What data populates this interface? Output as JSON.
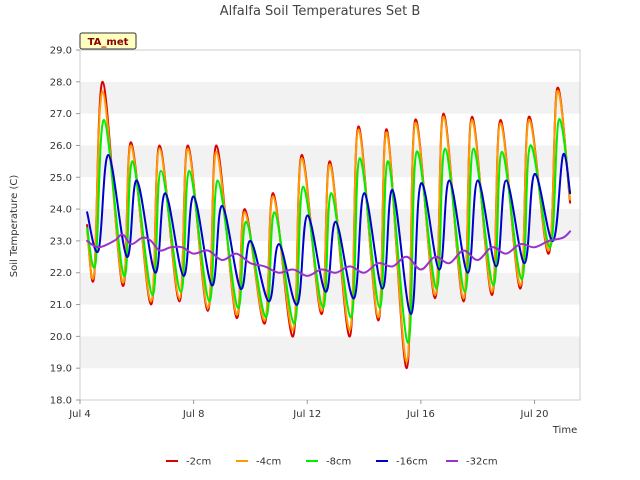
{
  "chart_data": {
    "type": "line",
    "title": "Alfalfa Soil Temperatures Set B",
    "xlabel": "Time",
    "ylabel": "Soil Temperature (C)",
    "badge": "TA_met",
    "x_unit": "days since Jul 4 00:00",
    "xlim": [
      4.0,
      21.6
    ],
    "ylim": [
      18.0,
      29.0
    ],
    "y_ticks": [
      18.0,
      19.0,
      20.0,
      21.0,
      22.0,
      23.0,
      24.0,
      25.0,
      26.0,
      27.0,
      28.0,
      29.0
    ],
    "x_ticks": [
      {
        "value": 4,
        "label": "Jul 4"
      },
      {
        "value": 8,
        "label": "Jul 8"
      },
      {
        "value": 12,
        "label": "Jul 12"
      },
      {
        "value": 16,
        "label": "Jul 16"
      },
      {
        "value": 20,
        "label": "Jul 20"
      }
    ],
    "grid": "horizontal bands",
    "legend_position": "bottom",
    "series": [
      {
        "name": "-2cm",
        "color": "#dd0000",
        "points": [
          [
            4.25,
            23.5
          ],
          [
            4.5,
            21.9
          ],
          [
            4.8,
            28.0
          ],
          [
            5.5,
            21.6
          ],
          [
            5.8,
            26.1
          ],
          [
            6.5,
            21.0
          ],
          [
            6.8,
            26.0
          ],
          [
            7.5,
            21.1
          ],
          [
            7.8,
            26.0
          ],
          [
            8.5,
            20.8
          ],
          [
            8.8,
            26.0
          ],
          [
            9.5,
            20.6
          ],
          [
            9.8,
            24.0
          ],
          [
            10.5,
            20.4
          ],
          [
            10.8,
            24.5
          ],
          [
            11.5,
            20.0
          ],
          [
            11.8,
            25.7
          ],
          [
            12.5,
            20.7
          ],
          [
            12.8,
            25.5
          ],
          [
            13.5,
            20.0
          ],
          [
            13.8,
            26.6
          ],
          [
            14.5,
            20.5
          ],
          [
            14.8,
            26.5
          ],
          [
            15.5,
            19.0
          ],
          [
            15.8,
            26.8
          ],
          [
            16.5,
            21.2
          ],
          [
            16.8,
            27.0
          ],
          [
            17.5,
            21.1
          ],
          [
            17.8,
            26.9
          ],
          [
            18.5,
            21.3
          ],
          [
            18.8,
            26.8
          ],
          [
            19.5,
            21.5
          ],
          [
            19.8,
            26.9
          ],
          [
            20.5,
            22.6
          ],
          [
            20.8,
            27.8
          ],
          [
            21.25,
            24.2
          ]
        ]
      },
      {
        "name": "-4cm",
        "color": "#ff9900",
        "points": [
          [
            4.25,
            23.3
          ],
          [
            4.5,
            22.0
          ],
          [
            4.8,
            27.7
          ],
          [
            5.5,
            21.7
          ],
          [
            5.8,
            26.0
          ],
          [
            6.5,
            21.1
          ],
          [
            6.8,
            25.9
          ],
          [
            7.5,
            21.2
          ],
          [
            7.8,
            25.9
          ],
          [
            8.5,
            20.9
          ],
          [
            8.8,
            25.8
          ],
          [
            9.5,
            20.7
          ],
          [
            9.8,
            23.9
          ],
          [
            10.5,
            20.5
          ],
          [
            10.8,
            24.4
          ],
          [
            11.5,
            20.2
          ],
          [
            11.8,
            25.6
          ],
          [
            12.5,
            20.8
          ],
          [
            12.8,
            25.4
          ],
          [
            13.5,
            20.2
          ],
          [
            13.8,
            26.5
          ],
          [
            14.5,
            20.6
          ],
          [
            14.8,
            26.4
          ],
          [
            15.5,
            19.2
          ],
          [
            15.8,
            26.7
          ],
          [
            16.5,
            21.3
          ],
          [
            16.8,
            26.9
          ],
          [
            17.5,
            21.2
          ],
          [
            17.8,
            26.8
          ],
          [
            18.5,
            21.4
          ],
          [
            18.8,
            26.7
          ],
          [
            19.5,
            21.6
          ],
          [
            19.8,
            26.8
          ],
          [
            20.5,
            22.7
          ],
          [
            20.8,
            27.7
          ],
          [
            21.25,
            24.3
          ]
        ]
      },
      {
        "name": "-8cm",
        "color": "#00ee00",
        "points": [
          [
            4.25,
            23.4
          ],
          [
            4.55,
            22.3
          ],
          [
            4.85,
            26.8
          ],
          [
            5.55,
            21.9
          ],
          [
            5.85,
            25.5
          ],
          [
            6.55,
            21.3
          ],
          [
            6.85,
            25.2
          ],
          [
            7.55,
            21.4
          ],
          [
            7.85,
            25.2
          ],
          [
            8.55,
            21.1
          ],
          [
            8.85,
            24.9
          ],
          [
            9.55,
            20.9
          ],
          [
            9.85,
            23.6
          ],
          [
            10.55,
            20.6
          ],
          [
            10.85,
            23.9
          ],
          [
            11.55,
            20.4
          ],
          [
            11.85,
            24.7
          ],
          [
            12.55,
            20.9
          ],
          [
            12.85,
            24.5
          ],
          [
            13.55,
            20.6
          ],
          [
            13.85,
            25.6
          ],
          [
            14.55,
            20.9
          ],
          [
            14.85,
            25.5
          ],
          [
            15.55,
            19.8
          ],
          [
            15.85,
            25.8
          ],
          [
            16.55,
            21.5
          ],
          [
            16.85,
            25.9
          ],
          [
            17.55,
            21.4
          ],
          [
            17.85,
            25.9
          ],
          [
            18.55,
            21.6
          ],
          [
            18.85,
            25.8
          ],
          [
            19.55,
            21.8
          ],
          [
            19.85,
            26.0
          ],
          [
            20.55,
            22.8
          ],
          [
            20.85,
            26.8
          ],
          [
            21.25,
            24.5
          ]
        ]
      },
      {
        "name": "-16cm",
        "color": "#0000cc",
        "points": [
          [
            4.25,
            23.9
          ],
          [
            4.65,
            22.7
          ],
          [
            5.0,
            25.7
          ],
          [
            5.65,
            22.5
          ],
          [
            6.0,
            24.9
          ],
          [
            6.65,
            22.0
          ],
          [
            7.0,
            24.5
          ],
          [
            7.65,
            21.9
          ],
          [
            8.0,
            24.4
          ],
          [
            8.65,
            21.6
          ],
          [
            9.0,
            24.1
          ],
          [
            9.65,
            21.5
          ],
          [
            10.0,
            23.0
          ],
          [
            10.65,
            21.1
          ],
          [
            11.0,
            22.9
          ],
          [
            11.65,
            21.0
          ],
          [
            12.0,
            23.8
          ],
          [
            12.65,
            21.4
          ],
          [
            13.0,
            23.6
          ],
          [
            13.65,
            21.2
          ],
          [
            14.0,
            24.5
          ],
          [
            14.65,
            21.5
          ],
          [
            15.0,
            24.6
          ],
          [
            15.65,
            20.7
          ],
          [
            16.0,
            24.8
          ],
          [
            16.65,
            22.1
          ],
          [
            17.0,
            24.9
          ],
          [
            17.65,
            22.0
          ],
          [
            18.0,
            24.9
          ],
          [
            18.65,
            22.2
          ],
          [
            19.0,
            24.9
          ],
          [
            19.65,
            22.3
          ],
          [
            20.0,
            25.1
          ],
          [
            20.65,
            23.0
          ],
          [
            21.0,
            25.7
          ],
          [
            21.25,
            24.5
          ]
        ]
      },
      {
        "name": "-32cm",
        "color": "#9933cc",
        "points": [
          [
            4.25,
            23.0
          ],
          [
            4.65,
            22.8
          ],
          [
            5.2,
            23.0
          ],
          [
            5.5,
            23.2
          ],
          [
            5.8,
            22.9
          ],
          [
            6.2,
            23.1
          ],
          [
            6.5,
            23.0
          ],
          [
            6.8,
            22.7
          ],
          [
            7.2,
            22.8
          ],
          [
            7.6,
            22.8
          ],
          [
            8.0,
            22.6
          ],
          [
            8.5,
            22.7
          ],
          [
            9.0,
            22.4
          ],
          [
            9.5,
            22.6
          ],
          [
            10.0,
            22.3
          ],
          [
            10.5,
            22.2
          ],
          [
            11.0,
            22.0
          ],
          [
            11.5,
            22.1
          ],
          [
            12.0,
            21.9
          ],
          [
            12.5,
            22.1
          ],
          [
            13.0,
            22.0
          ],
          [
            13.5,
            22.2
          ],
          [
            14.0,
            22.0
          ],
          [
            14.5,
            22.3
          ],
          [
            15.0,
            22.2
          ],
          [
            15.5,
            22.5
          ],
          [
            16.0,
            22.1
          ],
          [
            16.5,
            22.5
          ],
          [
            17.0,
            22.3
          ],
          [
            17.5,
            22.7
          ],
          [
            18.0,
            22.4
          ],
          [
            18.5,
            22.8
          ],
          [
            19.0,
            22.6
          ],
          [
            19.5,
            22.9
          ],
          [
            20.0,
            22.8
          ],
          [
            20.5,
            23.0
          ],
          [
            21.0,
            23.1
          ],
          [
            21.25,
            23.3
          ]
        ]
      }
    ]
  }
}
